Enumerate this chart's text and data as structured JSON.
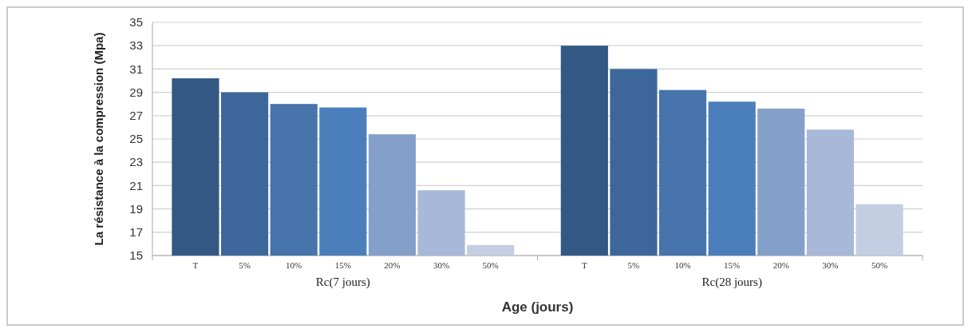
{
  "chart_data": {
    "type": "bar",
    "xlabel": "Age (jours)",
    "ylabel": "La résistance à la compression (Mpa)",
    "categories": [
      "Rc(7 jours)",
      "Rc(28 jours)"
    ],
    "series": [
      {
        "name": "T",
        "color": "#335884",
        "values": [
          30.2,
          33
        ]
      },
      {
        "name": "5%",
        "color": "#3d679b",
        "values": [
          29,
          31
        ]
      },
      {
        "name": "10%",
        "color": "#4874ac",
        "values": [
          28,
          29.2
        ]
      },
      {
        "name": "15%",
        "color": "#4b7fbb",
        "values": [
          27.7,
          28.2
        ]
      },
      {
        "name": "20%",
        "color": "#84a0ca",
        "values": [
          25.4,
          27.6
        ]
      },
      {
        "name": "30%",
        "color": "#a8b8d8",
        "values": [
          20.6,
          25.8
        ]
      },
      {
        "name": "50%",
        "color": "#c3cee2",
        "values": [
          15.9,
          19.4
        ]
      }
    ],
    "ylim": [
      15,
      35
    ],
    "yticks": [
      15,
      17,
      19,
      21,
      23,
      25,
      27,
      29,
      31,
      33,
      35
    ],
    "grid": "y",
    "legend": false
  }
}
